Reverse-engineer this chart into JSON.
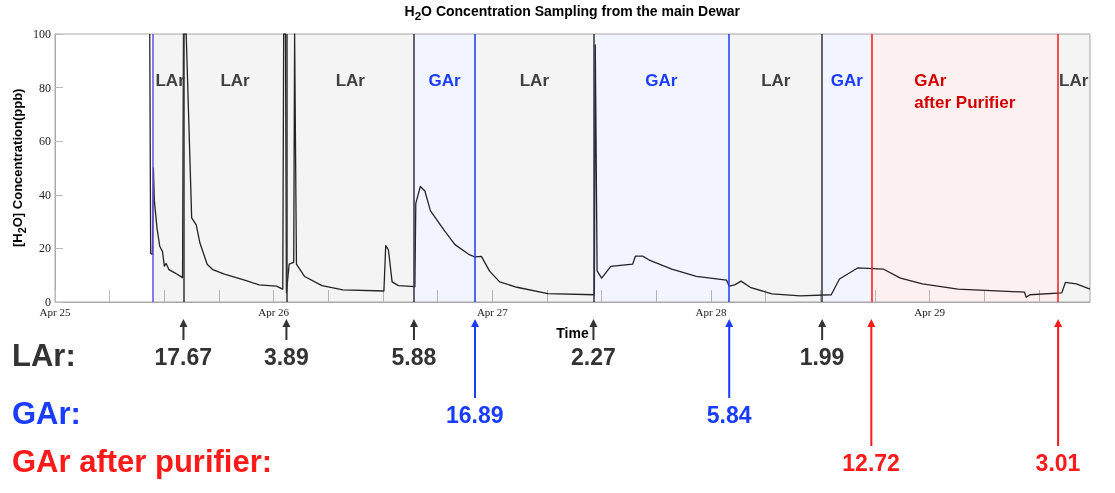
{
  "chart_data": {
    "type": "line",
    "title": "H$_{2}$O Concentration Sampling from the main Dewar",
    "xlabel": "Time",
    "ylabel": "[H$_{2}$O] Concentration(ppb)",
    "x": [
      "--04-25T10:24",
      "--04-25T10:30",
      "--04-25T10:42",
      "--04-25T10:48",
      "--04-25T10:54",
      "--04-25T11:12",
      "--04-25T11:30",
      "--04-25T11:48",
      "--04-25T12:00",
      "--04-25T12:12",
      "--04-25T12:30",
      "--04-25T13:12",
      "--04-25T14:00",
      "--04-25T14:06",
      "--04-25T14:24",
      "--04-25T15:00",
      "--04-25T15:30",
      "--04-25T15:54",
      "--04-25T16:42",
      "--04-25T17:18",
      "--04-25T18:36",
      "--04-25T20:54",
      "--04-25T22:24",
      "--04-26T00:18",
      "--04-26T01:00",
      "--04-26T01:06",
      "--04-26T01:18",
      "--04-26T01:24",
      "--04-26T01:42",
      "--04-26T02:12",
      "--04-26T02:18",
      "--04-26T02:30",
      "--04-26T03:24",
      "--04-26T05:18",
      "--04-26T07:36",
      "--04-26T12:06",
      "--04-26T12:18",
      "--04-26T12:36",
      "--04-26T13:00",
      "--04-26T13:42",
      "--04-26T15:30",
      "--04-26T15:36",
      "--04-26T16:06",
      "--04-26T16:36",
      "--04-26T17:12",
      "--04-26T18:42",
      "--04-26T19:54",
      "--04-26T21:24",
      "--04-26T22:06",
      "--04-26T22:48",
      "--04-26T23:42",
      "--04-27T00:48",
      "--04-27T02:42",
      "--04-27T06:06",
      "--04-27T11:12",
      "--04-27T11:18",
      "--04-27T11:30",
      "--04-27T12:00",
      "--04-27T13:00",
      "--04-27T15:24",
      "--04-27T15:42",
      "--04-27T16:30",
      "--04-27T17:18",
      "--04-27T19:42",
      "--04-27T22:24",
      "--04-28T01:42",
      "--04-28T02:00",
      "--04-28T02:36",
      "--04-28T03:18",
      "--04-28T04:18",
      "--04-28T06:42",
      "--04-28T09:48",
      "--04-28T13:12",
      "--04-28T14:06",
      "--04-28T16:06",
      "--04-28T18:54",
      "--04-28T20:48",
      "--04-28T23:12",
      "--04-29T03:06",
      "--04-29T10:24",
      "--04-29T10:36",
      "--04-29T11:00",
      "--04-29T14:30",
      "--04-29T14:54",
      "--04-29T16:06",
      "--04-29T17:36"
    ],
    "series": [
      {
        "color": "#222222",
        "values": [
          100,
          18.1,
          17.8,
          50,
          38,
          27.4,
          20.8,
          18.8,
          13.4,
          14.4,
          12.1,
          10.8,
          9.1,
          100,
          100,
          31.4,
          28.8,
          22.1,
          14.1,
          12.1,
          10.4,
          8.1,
          6.4,
          5.9,
          4.8,
          100,
          100,
          3.5,
          14.1,
          14.8,
          100,
          14.1,
          9.5,
          6.1,
          4.5,
          4.1,
          21,
          19.4,
          7.5,
          6.1,
          5.7,
          36.8,
          43.1,
          41.4,
          34.1,
          26.8,
          21.4,
          17.8,
          16.8,
          17,
          11.5,
          7.5,
          5.5,
          3.1,
          2.7,
          95.9,
          11.6,
          8.9,
          13.3,
          14.1,
          17.1,
          17.1,
          15.5,
          12.3,
          9.6,
          8.2,
          5.9,
          6.4,
          7.8,
          5.5,
          3,
          2.3,
          2.7,
          8.6,
          12.7,
          12.3,
          8.9,
          6.8,
          4.8,
          3.7,
          1.8,
          2.7,
          3.4,
          7.3,
          6.8,
          4.8
        ]
      }
    ],
    "xlim": [
      "--04-25",
      "--04-29T17:36"
    ],
    "xticks": [
      {
        "value": "--04-25",
        "label": "Apr 25"
      },
      {
        "value": "--04-25T06:00",
        "label": null
      },
      {
        "value": "--04-25T12:00",
        "label": null
      },
      {
        "value": "--04-25T18:00",
        "label": null
      },
      {
        "value": "--04-26",
        "label": "Apr 26"
      },
      {
        "value": "--04-26T06:00",
        "label": null
      },
      {
        "value": "--04-26T12:00",
        "label": null
      },
      {
        "value": "--04-26T18:00",
        "label": null
      },
      {
        "value": "--04-27",
        "label": "Apr 27"
      },
      {
        "value": "--04-27T06:00",
        "label": null
      },
      {
        "value": "--04-27T12:00",
        "label": null
      },
      {
        "value": "--04-27T18:00",
        "label": null
      },
      {
        "value": "--04-28",
        "label": "Apr 28"
      },
      {
        "value": "--04-28T06:00",
        "label": null
      },
      {
        "value": "--04-28T12:00",
        "label": null
      },
      {
        "value": "--04-28T18:00",
        "label": null
      },
      {
        "value": "--04-29",
        "label": "Apr 29"
      },
      {
        "value": "--04-29T06:00",
        "label": null
      },
      {
        "value": "--04-29T12:00",
        "label": null
      }
    ],
    "ylim": [
      0,
      100
    ],
    "yticks": [
      0,
      20,
      40,
      60,
      80,
      100
    ],
    "grid": false,
    "marker": "none",
    "ref_lines": [
      {
        "axis": "x",
        "value": "--04-25T10:42",
        "color": "#6655ff"
      },
      {
        "axis": "x",
        "value": "--04-25T14:06",
        "label": "17.67",
        "color": "#333333"
      },
      {
        "axis": "x",
        "value": "--04-26T01:24",
        "label": "3.89",
        "color": "#333333"
      },
      {
        "axis": "x",
        "value": "--04-26T15:24",
        "label": "5.88",
        "color": "#333333"
      },
      {
        "axis": "x",
        "value": "--04-26T22:06",
        "label": "16.89",
        "color": "#1a3cff"
      },
      {
        "axis": "x",
        "value": "--04-27T11:06",
        "label": "2.27",
        "color": "#333333"
      },
      {
        "axis": "x",
        "value": "--04-28T02:00",
        "label": "5.84",
        "color": "#1a3cff"
      },
      {
        "axis": "x",
        "value": "--04-28T12:12",
        "label": "1.99",
        "color": "#333333"
      },
      {
        "axis": "x",
        "value": "--04-28T17:36",
        "label": "12.72",
        "color": "#ff1a1a"
      },
      {
        "axis": "x",
        "value": "--04-29T14:06",
        "label": "3.01",
        "color": "#ff1a1a"
      }
    ],
    "bands": [
      {
        "axis": "x",
        "from": "--04-25T10:42",
        "to": "--04-25T14:06",
        "label": "LAr",
        "color": "#404040"
      },
      {
        "axis": "x",
        "from": "--04-25T14:06",
        "to": "--04-26T01:24",
        "label": "LAr",
        "color": "#404040"
      },
      {
        "axis": "x",
        "from": "--04-26T01:24",
        "to": "--04-26T15:24",
        "label": "LAr",
        "color": "#404040"
      },
      {
        "axis": "x",
        "from": "--04-26T15:24",
        "to": "--04-26T22:06",
        "label": "GAr",
        "color": "#1a3cff"
      },
      {
        "axis": "x",
        "from": "--04-26T22:06",
        "to": "--04-27T11:06",
        "label": "LAr",
        "color": "#404040"
      },
      {
        "axis": "x",
        "from": "--04-27T11:06",
        "to": "--04-28T02:00",
        "label": "GAr",
        "color": "#1a3cff"
      },
      {
        "axis": "x",
        "from": "--04-28T02:00",
        "to": "--04-28T12:12",
        "label": "LAr",
        "color": "#404040"
      },
      {
        "axis": "x",
        "from": "--04-28T12:12",
        "to": "--04-28T17:36",
        "label": "GAr",
        "color": "#1a3cff"
      },
      {
        "axis": "x",
        "from": "--04-28T17:36",
        "to": "--04-29T14:06",
        "label": "GAr\nafter Purifier",
        "color": "#d00000"
      },
      {
        "axis": "x",
        "from": "--04-29T14:06",
        "to": "--04-29T17:36",
        "label": "LAr",
        "color": "#404040"
      }
    ],
    "annotations": [
      "LAr:",
      "GAr:",
      "GAr after purifier:"
    ]
  }
}
